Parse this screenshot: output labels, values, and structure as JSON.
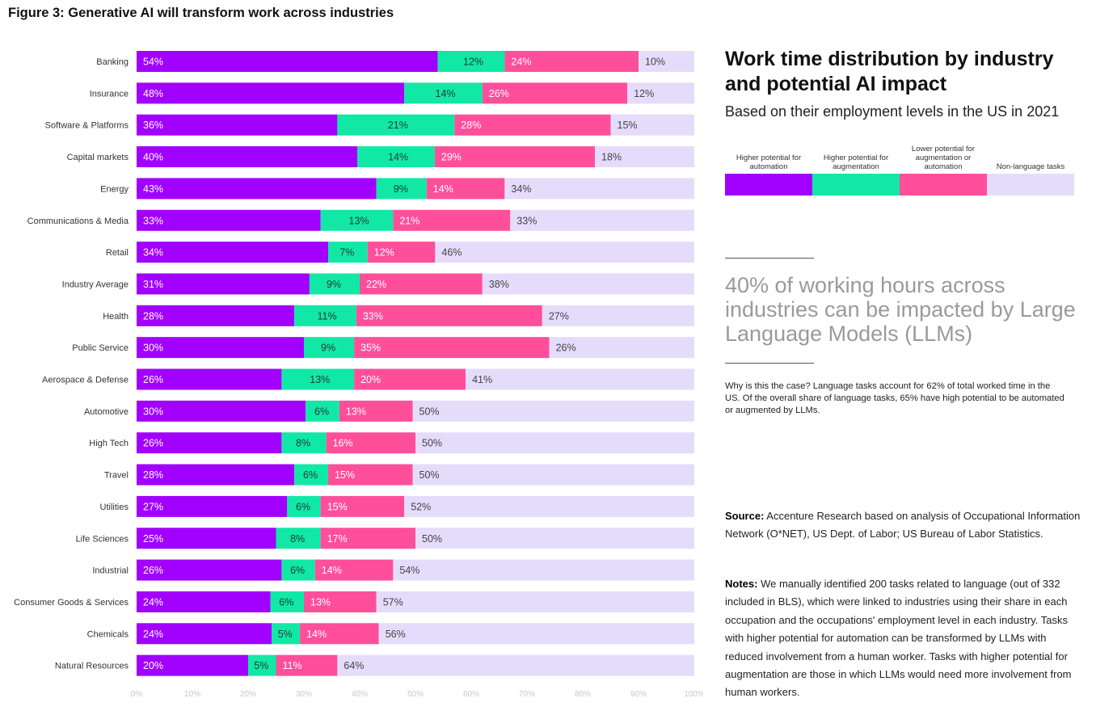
{
  "figure_title": "Figure 3: Generative AI will transform work across industries",
  "panel": {
    "title": "Work time distribution by industry and potential AI impact",
    "subtitle": "Based on their employment levels in the US in 2021",
    "highlight": "40% of working hours across industries can be impacted by Large Language Models (LLMs)",
    "explanation": "Why is this the case? Language tasks account for 62% of total worked time in the US. Of the overall share of language tasks, 65% have high potential to be automated or augmented by LLMs.",
    "source_label": "Source:",
    "source_text": " Accenture Research based on analysis of Occupational Information Network (O*NET), US Dept. of Labor; US Bureau of Labor Statistics.",
    "notes_label": "Notes:",
    "notes_text": " We manually identified 200 tasks related to language (out of 332 included in BLS), which were linked to industries using their share in each occupation and the occupations' employment level in each industry. Tasks with higher potential for automation can be transformed by LLMs with reduced involvement from a human worker. Tasks with higher potential for augmentation are those in which LLMs would need more involvement from human workers."
  },
  "chart_data": {
    "type": "bar",
    "orientation": "horizontal",
    "stacked": true,
    "xlim": [
      0,
      100
    ],
    "x_ticks": [
      "0%",
      "10%",
      "20%",
      "30%",
      "40%",
      "50%",
      "60%",
      "70%",
      "80%",
      "90%",
      "100%"
    ],
    "legend_placement": "right",
    "categories": [
      "Banking",
      "Insurance",
      "Software & Platforms",
      "Capital markets",
      "Energy",
      "Communications & Media",
      "Retail",
      "Industry Average",
      "Health",
      "Public Service",
      "Aerospace & Defense",
      "Automotive",
      "High Tech",
      "Travel",
      "Utilities",
      "Life Sciences",
      "Industrial",
      "Consumer Goods & Services",
      "Chemicals",
      "Natural Resources"
    ],
    "series": [
      {
        "name": "Higher potential for automation",
        "color": "#a100ff",
        "label_color": "#ffffff",
        "values": [
          54,
          48,
          36,
          40,
          43,
          33,
          34,
          31,
          28,
          30,
          26,
          30,
          26,
          28,
          27,
          25,
          26,
          24,
          24,
          20
        ]
      },
      {
        "name": "Higher potential for augmentation",
        "color": "#12e8a5",
        "label_color": "#1f3a30",
        "values": [
          12,
          14,
          21,
          14,
          9,
          13,
          7,
          9,
          11,
          9,
          13,
          6,
          8,
          6,
          6,
          8,
          6,
          6,
          5,
          5
        ]
      },
      {
        "name": "Lower potential for augmentation or automation",
        "color": "#ff4f9b",
        "label_color": "#ffffff",
        "values": [
          24,
          26,
          28,
          29,
          14,
          21,
          12,
          22,
          33,
          35,
          20,
          13,
          16,
          15,
          15,
          17,
          14,
          13,
          14,
          11
        ]
      },
      {
        "name": "Non-language tasks",
        "color": "#e5dcfb",
        "label_color": "#444444",
        "values": [
          10,
          12,
          15,
          18,
          34,
          33,
          46,
          38,
          27,
          26,
          41,
          50,
          50,
          50,
          52,
          50,
          54,
          57,
          56,
          64
        ]
      }
    ]
  }
}
